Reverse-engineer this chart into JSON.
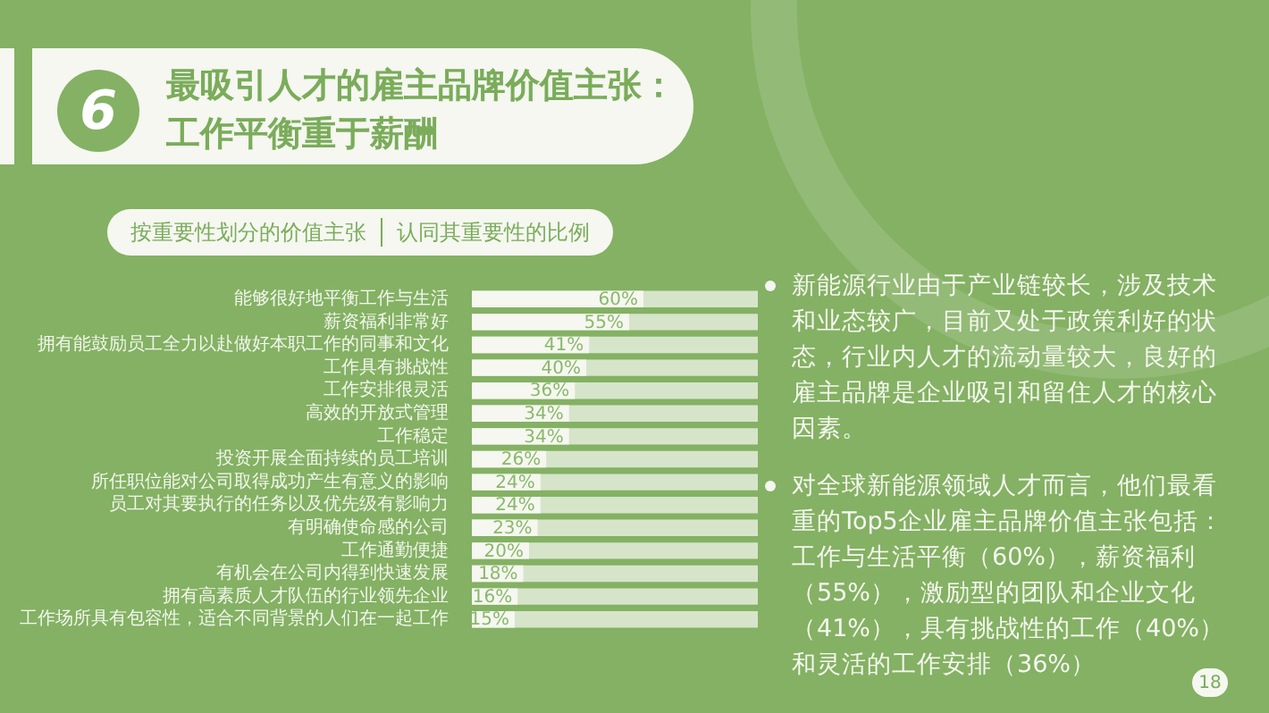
{
  "chart_data": {
    "type": "bar",
    "orientation": "horizontal",
    "title": "最吸引人才的雇主品牌价值主张：工作平衡重于薪酬",
    "ylabel": "按重要性划分的价值主张",
    "xlabel": "认同其重要性的比例",
    "categories": [
      "能够很好地平衡工作与生活",
      "薪资福利非常好",
      "拥有能鼓励员工全力以赴做好本职工作的同事和文化",
      "工作具有挑战性",
      "工作安排很灵活",
      "高效的开放式管理",
      "工作稳定",
      "投资开展全面持续的员工培训",
      "所任职位能对公司取得成功产生有意义的影响",
      "员工对其要执行的任务以及优先级有影响力",
      "有明确使命感的公司",
      "工作通勤便捷",
      "有机会在公司内得到快速发展",
      "拥有高素质人才队伍的行业领先企业",
      "工作场所具有包容性，适合不同背景的人们在一起工作"
    ],
    "values": [
      60,
      55,
      41,
      40,
      36,
      34,
      34,
      26,
      24,
      24,
      23,
      20,
      18,
      16,
      15
    ],
    "value_labels": [
      "60%",
      "55%",
      "41%",
      "40%",
      "36%",
      "34%",
      "34%",
      "26%",
      "24%",
      "24%",
      "23%",
      "20%",
      "18%",
      "16%",
      "15%"
    ],
    "color": "#f5f7f0",
    "xlim": [
      0,
      100
    ],
    "tick_labels": "y",
    "legend": false,
    "annotations": [
      "6",
      "新能源行业由于产业链较长，涉及技术和业态较广，目前又处于政策利好的状态，行业内人才的流动量较大，良好的雇主品牌是企业吸引和留住人才的核心因素。",
      "对全球新能源领域人才而言，他们最看重的Top5企业雇主品牌价值主张包括：工作与生活平衡（60%），薪资福利（55%），激励型的团队和企业文化（41%），具有挑战性的工作（40%）和灵活的工作安排（36%）",
      "18"
    ]
  }
}
